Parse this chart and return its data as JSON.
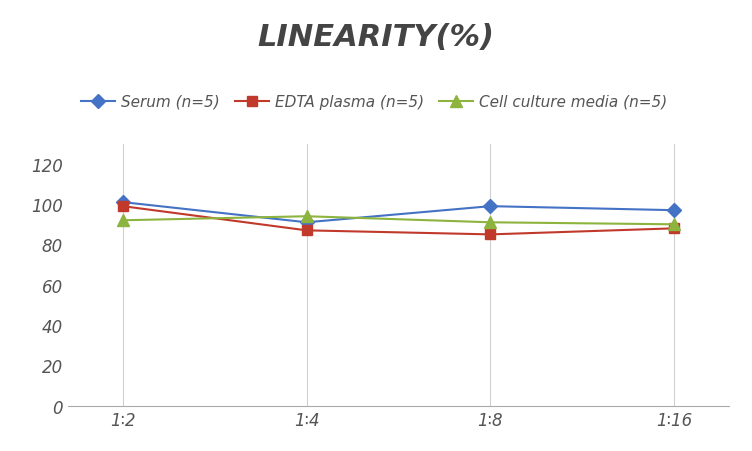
{
  "title": "LINEARITY(%)",
  "x_labels": [
    "1∶2",
    "1∶4",
    "1∶8",
    "1∶16"
  ],
  "x_positions": [
    0,
    1,
    2,
    3
  ],
  "series": [
    {
      "label": "Serum (n=5)",
      "color": "#4472C4",
      "marker": "D",
      "markersize": 7,
      "values": [
        101,
        91,
        99,
        97
      ]
    },
    {
      "label": "EDTA plasma (n=5)",
      "color": "#C0392B",
      "marker": "s",
      "markersize": 7,
      "values": [
        99,
        87,
        85,
        88
      ]
    },
    {
      "label": "Cell culture media (n=5)",
      "color": "#8DB43E",
      "marker": "^",
      "markersize": 8,
      "values": [
        92,
        94,
        91,
        90
      ]
    }
  ],
  "ylim": [
    0,
    130
  ],
  "yticks": [
    0,
    20,
    40,
    60,
    80,
    100,
    120
  ],
  "grid_color": "#D0D0D0",
  "background_color": "#FFFFFF",
  "title_fontsize": 22,
  "legend_fontsize": 11,
  "tick_fontsize": 12
}
